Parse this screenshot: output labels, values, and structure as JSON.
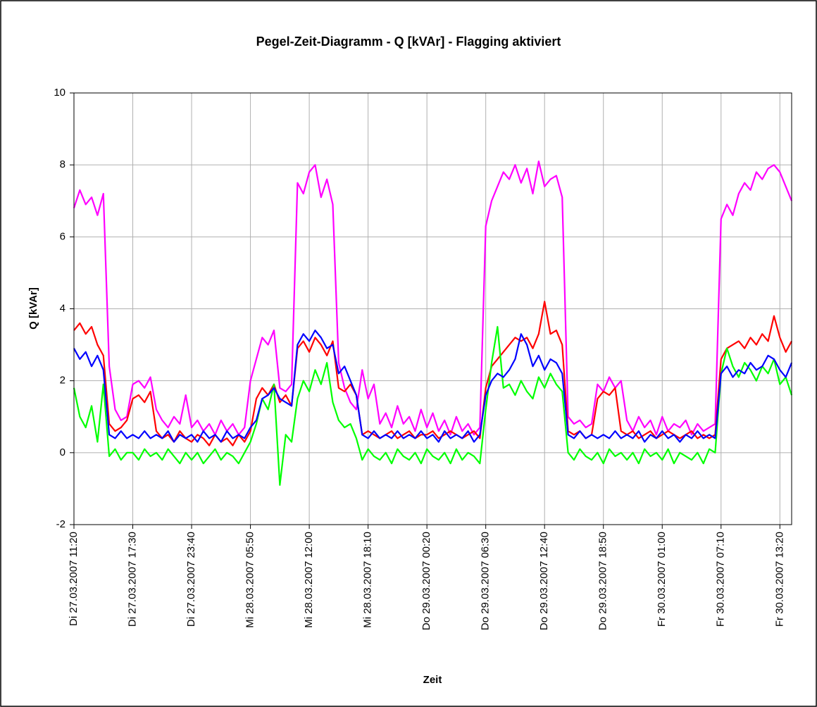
{
  "chart_data": {
    "type": "line",
    "title": "Pegel-Zeit-Diagramm - Q [kVAr] - Flagging aktiviert",
    "x_label": "Zeit",
    "y_label": "Q [kVAr]",
    "categories": [
      "Di 27.03.2007 11:20",
      null,
      null,
      null,
      null,
      null,
      null,
      null,
      null,
      null,
      "Di 27.03.2007 17:30",
      null,
      null,
      null,
      null,
      null,
      null,
      null,
      null,
      null,
      "Di 27.03.2007 23:40",
      null,
      null,
      null,
      null,
      null,
      null,
      null,
      null,
      null,
      "Mi 28.03.2007 05:50",
      null,
      null,
      null,
      null,
      null,
      null,
      null,
      null,
      null,
      "Mi 28.03.2007 12:00",
      null,
      null,
      null,
      null,
      null,
      null,
      null,
      null,
      null,
      "Mi 28.03.2007 18:10",
      null,
      null,
      null,
      null,
      null,
      null,
      null,
      null,
      null,
      "Do 29.03.2007 00:20",
      null,
      null,
      null,
      null,
      null,
      null,
      null,
      null,
      null,
      "Do 29.03.2007 06:30",
      null,
      null,
      null,
      null,
      null,
      null,
      null,
      null,
      null,
      "Do 29.03.2007 12:40",
      null,
      null,
      null,
      null,
      null,
      null,
      null,
      null,
      null,
      "Do 29.03.2007 18:50",
      null,
      null,
      null,
      null,
      null,
      null,
      null,
      null,
      null,
      "Fr 30.03.2007 01:00",
      null,
      null,
      null,
      null,
      null,
      null,
      null,
      null,
      null,
      "Fr 30.03.2007 07:10",
      null,
      null,
      null,
      null,
      null,
      null,
      null,
      null,
      null,
      "Fr 30.03.2007 13:20",
      null,
      null
    ],
    "series": [
      {
        "color": "#ff00ff",
        "values": [
          6.8,
          7.3,
          6.9,
          7.1,
          6.6,
          7.2,
          2.4,
          1.2,
          0.9,
          1.0,
          1.9,
          2.0,
          1.8,
          2.1,
          1.2,
          0.9,
          0.7,
          1.0,
          0.8,
          1.6,
          0.7,
          0.9,
          0.6,
          0.8,
          0.5,
          0.9,
          0.6,
          0.8,
          0.5,
          0.7,
          2.0,
          2.6,
          3.2,
          3.0,
          3.4,
          1.8,
          1.7,
          1.9,
          7.5,
          7.2,
          7.8,
          8.0,
          7.1,
          7.6,
          6.9,
          2.5,
          1.8,
          1.4,
          1.2,
          2.3,
          1.5,
          1.9,
          0.8,
          1.1,
          0.7,
          1.3,
          0.8,
          1.0,
          0.6,
          1.2,
          0.7,
          1.1,
          0.6,
          0.9,
          0.5,
          1.0,
          0.6,
          0.8,
          0.5,
          0.7,
          6.3,
          7.0,
          7.4,
          7.8,
          7.6,
          8.0,
          7.5,
          7.9,
          7.2,
          8.1,
          7.4,
          7.6,
          7.7,
          7.1,
          1.0,
          0.8,
          0.9,
          0.7,
          0.8,
          1.9,
          1.7,
          2.1,
          1.8,
          2.0,
          0.9,
          0.6,
          1.0,
          0.7,
          0.9,
          0.5,
          1.0,
          0.6,
          0.8,
          0.7,
          0.9,
          0.5,
          0.8,
          0.6,
          0.7,
          0.8,
          6.5,
          6.9,
          6.6,
          7.2,
          7.5,
          7.3,
          7.8,
          7.6,
          7.9,
          8.0,
          7.8,
          7.4,
          7.0
        ]
      },
      {
        "color": "#ff0000",
        "values": [
          3.4,
          3.6,
          3.3,
          3.5,
          3.0,
          2.7,
          0.8,
          0.6,
          0.7,
          0.9,
          1.5,
          1.6,
          1.4,
          1.7,
          0.6,
          0.4,
          0.5,
          0.3,
          0.6,
          0.4,
          0.3,
          0.5,
          0.4,
          0.2,
          0.5,
          0.3,
          0.4,
          0.2,
          0.5,
          0.3,
          0.6,
          1.5,
          1.8,
          1.6,
          1.9,
          1.4,
          1.6,
          1.3,
          2.9,
          3.1,
          2.8,
          3.2,
          3.0,
          2.7,
          3.1,
          1.8,
          1.7,
          1.9,
          1.6,
          0.5,
          0.6,
          0.5,
          0.4,
          0.5,
          0.6,
          0.4,
          0.5,
          0.6,
          0.4,
          0.5,
          0.5,
          0.6,
          0.4,
          0.5,
          0.6,
          0.5,
          0.4,
          0.5,
          0.6,
          0.4,
          1.8,
          2.4,
          2.6,
          2.8,
          3.0,
          3.2,
          3.1,
          3.2,
          2.9,
          3.3,
          4.2,
          3.3,
          3.4,
          3.0,
          0.6,
          0.5,
          0.6,
          0.4,
          0.5,
          1.5,
          1.7,
          1.6,
          1.8,
          0.6,
          0.5,
          0.6,
          0.4,
          0.5,
          0.6,
          0.4,
          0.5,
          0.6,
          0.5,
          0.4,
          0.5,
          0.6,
          0.4,
          0.5,
          0.4,
          0.5,
          2.6,
          2.9,
          3.0,
          3.1,
          2.9,
          3.2,
          3.0,
          3.3,
          3.1,
          3.8,
          3.2,
          2.8,
          3.1
        ]
      },
      {
        "color": "#00ff00",
        "values": [
          1.8,
          1.0,
          0.7,
          1.3,
          0.3,
          1.9,
          -0.1,
          0.1,
          -0.2,
          0.0,
          0.0,
          -0.2,
          0.1,
          -0.1,
          0.0,
          -0.2,
          0.1,
          -0.1,
          -0.3,
          0.0,
          -0.2,
          0.0,
          -0.3,
          -0.1,
          0.1,
          -0.2,
          0.0,
          -0.1,
          -0.3,
          0.0,
          0.3,
          0.8,
          1.5,
          1.2,
          1.9,
          -0.9,
          0.5,
          0.3,
          1.5,
          2.0,
          1.7,
          2.3,
          1.9,
          2.5,
          1.4,
          0.9,
          0.7,
          0.8,
          0.4,
          -0.2,
          0.1,
          -0.1,
          -0.2,
          0.0,
          -0.3,
          0.1,
          -0.1,
          -0.2,
          0.0,
          -0.3,
          0.1,
          -0.1,
          -0.2,
          0.0,
          -0.3,
          0.1,
          -0.2,
          0.0,
          -0.1,
          -0.3,
          1.2,
          2.5,
          3.5,
          1.8,
          1.9,
          1.6,
          2.0,
          1.7,
          1.5,
          2.1,
          1.8,
          2.2,
          1.9,
          1.7,
          0.0,
          -0.2,
          0.1,
          -0.1,
          -0.2,
          0.0,
          -0.3,
          0.1,
          -0.1,
          0.0,
          -0.2,
          0.0,
          -0.3,
          0.1,
          -0.1,
          0.0,
          -0.2,
          0.1,
          -0.3,
          0.0,
          -0.1,
          -0.2,
          0.0,
          -0.3,
          0.1,
          0.0,
          2.2,
          2.9,
          2.4,
          2.1,
          2.5,
          2.3,
          2.0,
          2.4,
          2.2,
          2.6,
          1.9,
          2.1,
          1.6
        ]
      },
      {
        "color": "#0000ff",
        "values": [
          2.9,
          2.6,
          2.8,
          2.4,
          2.7,
          2.3,
          0.5,
          0.4,
          0.6,
          0.4,
          0.5,
          0.4,
          0.6,
          0.4,
          0.5,
          0.4,
          0.6,
          0.3,
          0.5,
          0.4,
          0.5,
          0.3,
          0.6,
          0.4,
          0.5,
          0.3,
          0.6,
          0.4,
          0.5,
          0.4,
          0.7,
          0.9,
          1.5,
          1.6,
          1.8,
          1.5,
          1.4,
          1.3,
          3.0,
          3.3,
          3.1,
          3.4,
          3.2,
          2.9,
          3.0,
          2.2,
          2.4,
          2.0,
          1.6,
          0.5,
          0.4,
          0.6,
          0.4,
          0.5,
          0.4,
          0.6,
          0.4,
          0.5,
          0.4,
          0.6,
          0.4,
          0.5,
          0.3,
          0.6,
          0.4,
          0.5,
          0.4,
          0.6,
          0.3,
          0.5,
          1.6,
          2.0,
          2.2,
          2.1,
          2.3,
          2.6,
          3.3,
          3.0,
          2.4,
          2.7,
          2.3,
          2.6,
          2.5,
          2.2,
          0.5,
          0.4,
          0.6,
          0.4,
          0.5,
          0.4,
          0.5,
          0.4,
          0.6,
          0.4,
          0.5,
          0.4,
          0.6,
          0.3,
          0.5,
          0.4,
          0.6,
          0.4,
          0.5,
          0.3,
          0.5,
          0.4,
          0.6,
          0.4,
          0.5,
          0.4,
          2.2,
          2.4,
          2.1,
          2.3,
          2.2,
          2.5,
          2.3,
          2.4,
          2.7,
          2.6,
          2.3,
          2.1,
          2.5
        ]
      }
    ],
    "ylim": [
      -2,
      10
    ],
    "yticks": [
      -2,
      0,
      2,
      4,
      6,
      8,
      10
    ],
    "grid": true
  }
}
